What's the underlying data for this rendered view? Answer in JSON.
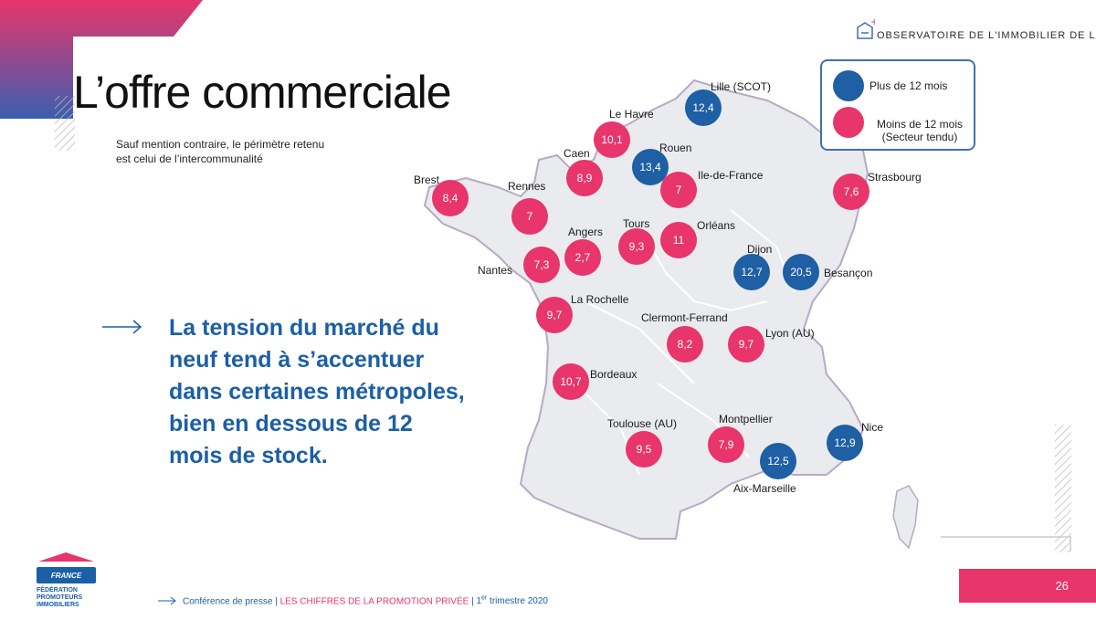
{
  "header": {
    "observatory_label": "OBSERVATOIRE DE L'IMMOBILIER DE LA FPI"
  },
  "title": "L’offre commerciale",
  "note": "Sauf mention contraire, le périmètre retenu est celui de l’intercommunalité",
  "main_text": "La tension du marché du neuf tend à s’accentuer dans certaines métropoles, bien en dessous de 12 mois de stock.",
  "legend": {
    "over_12": {
      "label": "Plus de 12 mois",
      "color": "#1f5fa3"
    },
    "under_12": {
      "label_line1": "Moins de 12 mois",
      "label_line2": "(Secteur tendu)",
      "color": "#e8356b"
    }
  },
  "cities": [
    {
      "id": "lille",
      "name": "Lille (SCOT)",
      "value": "12,4",
      "category": "over"
    },
    {
      "id": "le-havre",
      "name": "Le Havre",
      "value": "10,1",
      "category": "under"
    },
    {
      "id": "rouen",
      "name": "Rouen",
      "value": "13,4",
      "category": "over"
    },
    {
      "id": "caen",
      "name": "Caen",
      "value": "8,9",
      "category": "under"
    },
    {
      "id": "idf",
      "name": "Ile-de-France",
      "value": "7",
      "category": "under"
    },
    {
      "id": "strasbourg",
      "name": "Strasbourg",
      "value": "7,6",
      "category": "under"
    },
    {
      "id": "brest",
      "name": "Brest",
      "value": "8,4",
      "category": "under"
    },
    {
      "id": "rennes",
      "name": "Rennes",
      "value": "7",
      "category": "under"
    },
    {
      "id": "angers",
      "name": "Angers",
      "value": "2,7",
      "category": "under"
    },
    {
      "id": "tours",
      "name": "Tours",
      "value": "9,3",
      "category": "under"
    },
    {
      "id": "orleans",
      "name": "Orléans",
      "value": "11",
      "category": "under"
    },
    {
      "id": "dijon",
      "name": "Dijon",
      "value": "12,7",
      "category": "over"
    },
    {
      "id": "besancon",
      "name": "Besançon",
      "value": "20,5",
      "category": "over"
    },
    {
      "id": "nantes",
      "name": "Nantes",
      "value": "7,3",
      "category": "under"
    },
    {
      "id": "la-rochelle",
      "name": "La Rochelle",
      "value": "9,7",
      "category": "under"
    },
    {
      "id": "clermont",
      "name": "Clermont-Ferrand",
      "value": "8,2",
      "category": "under"
    },
    {
      "id": "lyon",
      "name": "Lyon (AU)",
      "value": "9,7",
      "category": "under"
    },
    {
      "id": "bordeaux",
      "name": "Bordeaux",
      "value": "10,7",
      "category": "under"
    },
    {
      "id": "toulouse",
      "name": "Toulouse (AU)",
      "value": "9,5",
      "category": "under"
    },
    {
      "id": "montpellier",
      "name": "Montpellier",
      "value": "7,9",
      "category": "under"
    },
    {
      "id": "aix-marseille",
      "name": "Aix-Marseille",
      "value": "12,5",
      "category": "over"
    },
    {
      "id": "nice",
      "name": "Nice",
      "value": "12,9",
      "category": "over"
    }
  ],
  "footer": {
    "part1": "Conférence de presse",
    "part2": "LES CHIFFRES DE LA PROMOTION PRIVÉE",
    "part3_sup": "er",
    "part3_num": "1",
    "part3_rest": "trimestre 2020",
    "separator": "|"
  },
  "page_number": "26",
  "logo": {
    "flag_text": "FRANCE",
    "org_line1": "FÉDÉRATION",
    "org_line2": "PROMOTEURS",
    "org_line3": "IMMOBILIERS"
  },
  "colors": {
    "blue": "#1f5fa3",
    "pink": "#e8356b",
    "text_blue": "#1b5fa6"
  }
}
